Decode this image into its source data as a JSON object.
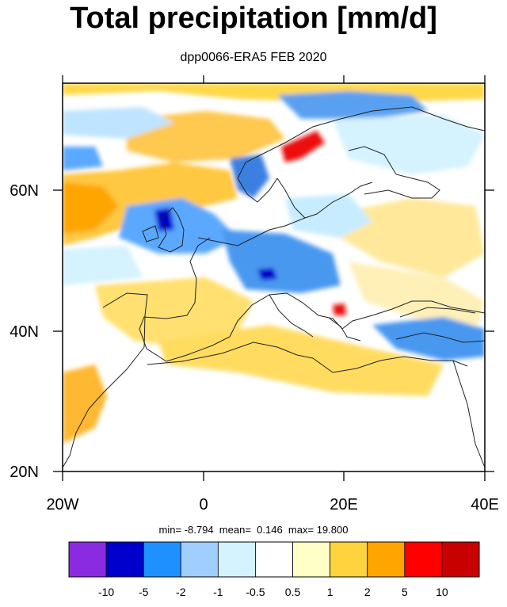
{
  "title": "Total precipitation [mm/d]",
  "subtitle": "dpp0066-ERA5 FEB 2020",
  "stats": {
    "min": "-8.794",
    "mean": "0.146",
    "max": "19.800"
  },
  "map": {
    "lon_range": [
      -20,
      40
    ],
    "lat_range": [
      20,
      75
    ],
    "x_ticks": [
      {
        "label": "20W"
      },
      {
        "label": "0"
      },
      {
        "label": "20E"
      },
      {
        "label": "40E"
      }
    ],
    "y_ticks": [
      {
        "label": "20N"
      },
      {
        "label": "40N"
      },
      {
        "label": "60N"
      }
    ]
  },
  "colorbar": {
    "colors": [
      "#8a2be2",
      "#0000cd",
      "#1e90ff",
      "#a0cfff",
      "#d4f2ff",
      "#ffffff",
      "#ffffc8",
      "#ffd33d",
      "#ffa500",
      "#ff0000",
      "#c80000"
    ],
    "labels": [
      "-10",
      "-5",
      "-2",
      "-1",
      "-0.5",
      "0.5",
      "1",
      "2",
      "5",
      "10"
    ]
  }
}
